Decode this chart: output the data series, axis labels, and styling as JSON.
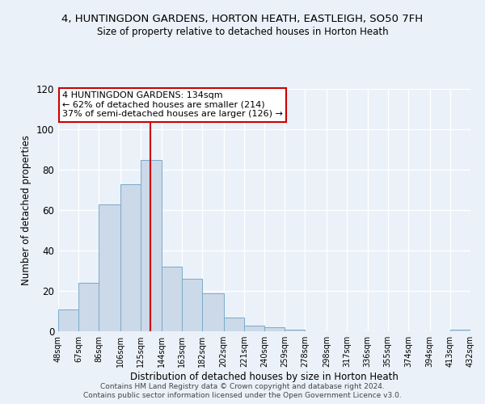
{
  "title": "4, HUNTINGDON GARDENS, HORTON HEATH, EASTLEIGH, SO50 7FH",
  "subtitle": "Size of property relative to detached houses in Horton Heath",
  "xlabel": "Distribution of detached houses by size in Horton Heath",
  "ylabel": "Number of detached properties",
  "footer_line1": "Contains HM Land Registry data © Crown copyright and database right 2024.",
  "footer_line2": "Contains public sector information licensed under the Open Government Licence v3.0.",
  "annotation_line1": "4 HUNTINGDON GARDENS: 134sqm",
  "annotation_line2": "← 62% of detached houses are smaller (214)",
  "annotation_line3": "37% of semi-detached houses are larger (126) →",
  "bin_edges": [
    48,
    67,
    86,
    106,
    125,
    144,
    163,
    182,
    202,
    221,
    240,
    259,
    278,
    298,
    317,
    336,
    355,
    374,
    394,
    413,
    432
  ],
  "bin_counts": [
    11,
    24,
    63,
    73,
    85,
    32,
    26,
    19,
    7,
    3,
    2,
    1,
    0,
    0,
    0,
    0,
    0,
    0,
    0,
    1
  ],
  "bar_color": "#ccd9e8",
  "bar_edge_color": "#7aaaca",
  "vline_x": 134,
  "vline_color": "#cc0000",
  "annotation_box_edge_color": "#cc0000",
  "annotation_box_bg": "#ffffff",
  "background_color": "#eaf1f8",
  "grid_color": "#ffffff",
  "ylim": [
    0,
    120
  ],
  "yticks": [
    0,
    20,
    40,
    60,
    80,
    100,
    120
  ],
  "tick_labels": [
    "48sqm",
    "67sqm",
    "86sqm",
    "106sqm",
    "125sqm",
    "144sqm",
    "163sqm",
    "182sqm",
    "202sqm",
    "221sqm",
    "240sqm",
    "259sqm",
    "278sqm",
    "298sqm",
    "317sqm",
    "336sqm",
    "355sqm",
    "374sqm",
    "394sqm",
    "413sqm",
    "432sqm"
  ]
}
